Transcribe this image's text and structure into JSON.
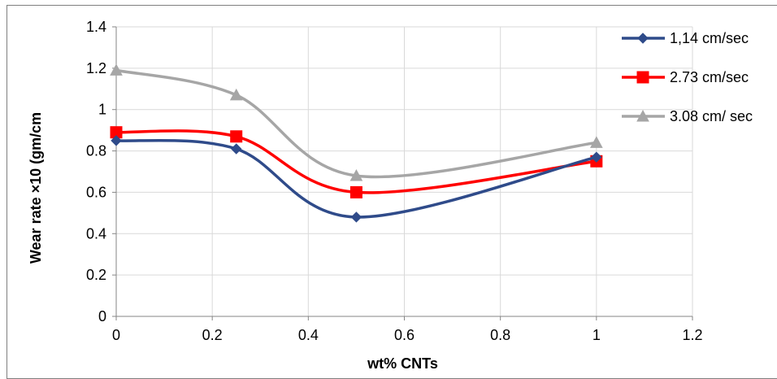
{
  "chart_data": {
    "type": "line",
    "title": "",
    "xlabel": "wt% CNTs",
    "ylabel": "Wear rate ×10 (gm/cm",
    "xlim": [
      0,
      1.2
    ],
    "ylim": [
      0,
      1.4
    ],
    "xticks": [
      "0",
      "0.2",
      "0.4",
      "0.6",
      "0.8",
      "1",
      "1.2"
    ],
    "yticks": [
      "0",
      "0.2",
      "0.4",
      "0.6",
      "0.8",
      "1",
      "1.2",
      "1.4"
    ],
    "grid": true,
    "legend_position": "right",
    "smooth": true,
    "series": [
      {
        "name": "1,14 cm/sec",
        "color": "#2f4b8a",
        "marker": "diamond",
        "x": [
          0,
          0.25,
          0.5,
          1
        ],
        "y": [
          0.85,
          0.81,
          0.48,
          0.77
        ]
      },
      {
        "name": "2.73 cm/sec",
        "color": "#ff0000",
        "marker": "square",
        "x": [
          0,
          0.25,
          0.5,
          1
        ],
        "y": [
          0.89,
          0.87,
          0.6,
          0.75
        ]
      },
      {
        "name": "3.08 cm/ sec",
        "color": "#a6a6a6",
        "marker": "triangle",
        "x": [
          0,
          0.25,
          0.5,
          1
        ],
        "y": [
          1.19,
          1.07,
          0.68,
          0.84
        ]
      }
    ]
  }
}
